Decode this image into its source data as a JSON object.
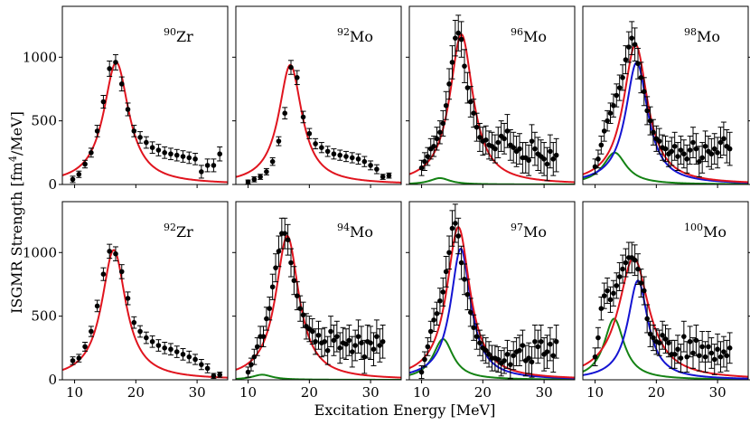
{
  "chart_data": {
    "type": "scatter",
    "layout": "2x4 grid of panels with shared axes",
    "xlabel": "Excitation Energy [MeV]",
    "ylabel": "ISGMR Strength [fm^4/MeV]",
    "ylabel_parts": {
      "main": "ISGMR Strength [fm",
      "sup": "4",
      "tail": "/MeV]"
    },
    "xlim": [
      8,
      35
    ],
    "ylim": [
      0,
      1400
    ],
    "xticks": [
      10,
      20,
      30
    ],
    "yticks": [
      0,
      500,
      1000
    ],
    "series_colors": {
      "data": "#000000",
      "total_fit": "#e0141e",
      "main_peak": "#1414d2",
      "low_peak": "#148214"
    },
    "panels": [
      {
        "name": "Zr-90",
        "mass": "90",
        "element": "Zr",
        "data": {
          "x": [
            9.7,
            10.7,
            11.7,
            12.7,
            13.7,
            14.7,
            15.7,
            16.7,
            17.7,
            18.7,
            19.7,
            20.7,
            21.7,
            22.7,
            23.7,
            24.7,
            25.7,
            26.7,
            27.7,
            28.7,
            29.7,
            30.7,
            31.7,
            32.7,
            33.7
          ],
          "y": [
            40,
            80,
            160,
            250,
            420,
            650,
            910,
            960,
            790,
            590,
            420,
            370,
            330,
            290,
            270,
            250,
            240,
            230,
            220,
            210,
            200,
            100,
            150,
            150,
            240
          ],
          "err": [
            25,
            25,
            30,
            35,
            45,
            50,
            60,
            60,
            55,
            50,
            45,
            45,
            45,
            45,
            45,
            45,
            45,
            45,
            45,
            45,
            45,
            50,
            50,
            50,
            55
          ]
        },
        "fit_total": {
          "centroid": 16.8,
          "width": 5.0,
          "peak": 960
        }
      },
      {
        "name": "Mo-92",
        "mass": "92",
        "element": "Mo",
        "data": {
          "x": [
            10.0,
            11.0,
            12.0,
            13.0,
            14.0,
            15.0,
            16.0,
            17.0,
            18.0,
            19.0,
            20.0,
            21.0,
            22.0,
            23.0,
            24.0,
            25.0,
            26.0,
            27.0,
            28.0,
            29.0,
            30.0,
            31.0,
            32.0,
            33.0
          ],
          "y": [
            20,
            40,
            60,
            100,
            180,
            340,
            560,
            920,
            840,
            530,
            400,
            320,
            290,
            260,
            240,
            230,
            220,
            210,
            200,
            180,
            150,
            120,
            60,
            70
          ],
          "err": [
            15,
            20,
            20,
            25,
            30,
            35,
            45,
            55,
            55,
            45,
            40,
            40,
            40,
            40,
            40,
            40,
            40,
            40,
            40,
            40,
            35,
            35,
            20,
            20
          ]
        },
        "fit_total": {
          "centroid": 16.9,
          "width": 4.6,
          "peak": 940
        }
      },
      {
        "name": "Mo-96",
        "mass": "96",
        "element": "Mo",
        "data": {
          "x": [
            10.0,
            10.5,
            11.0,
            11.5,
            12.0,
            12.5,
            13.0,
            13.5,
            14.0,
            14.5,
            15.0,
            15.5,
            16.0,
            16.5,
            17.0,
            17.5,
            18.0,
            18.5,
            19.0,
            19.5,
            20.0,
            20.5,
            21.0,
            21.5,
            22.0,
            22.5,
            23.0,
            23.5,
            24.0,
            24.5,
            25.0,
            25.5,
            26.0,
            26.5,
            27.0,
            27.5,
            28.0,
            28.5,
            29.0,
            29.5,
            30.0,
            30.5,
            31.0,
            31.5,
            32.0
          ],
          "y": [
            130,
            180,
            220,
            280,
            300,
            360,
            410,
            480,
            620,
            790,
            960,
            1150,
            1190,
            1140,
            930,
            760,
            650,
            560,
            450,
            370,
            340,
            350,
            310,
            300,
            280,
            330,
            380,
            360,
            420,
            310,
            290,
            260,
            280,
            210,
            210,
            190,
            340,
            280,
            240,
            220,
            200,
            160,
            260,
            200,
            230
          ],
          "err": [
            60,
            70,
            70,
            80,
            80,
            90,
            90,
            100,
            110,
            120,
            130,
            140,
            140,
            140,
            130,
            120,
            120,
            110,
            110,
            110,
            110,
            110,
            110,
            110,
            110,
            120,
            120,
            120,
            130,
            120,
            120,
            120,
            120,
            120,
            120,
            120,
            130,
            130,
            130,
            130,
            130,
            130,
            130,
            130,
            130
          ]
        },
        "fit_total": {
          "centroid": 16.5,
          "width": 4.6,
          "peak": 1180
        },
        "fit_low": {
          "centroid": 13.0,
          "width": 4.0,
          "peak": 50
        }
      },
      {
        "name": "Mo-98",
        "mass": "98",
        "element": "Mo",
        "data": {
          "x": [
            10.0,
            10.5,
            11.0,
            11.5,
            12.0,
            12.5,
            13.0,
            13.5,
            14.0,
            14.5,
            15.0,
            15.5,
            16.0,
            16.5,
            17.0,
            17.5,
            18.0,
            18.5,
            19.0,
            19.5,
            20.0,
            20.5,
            21.0,
            21.5,
            22.0,
            22.5,
            23.0,
            23.5,
            24.0,
            24.5,
            25.0,
            25.5,
            26.0,
            26.5,
            27.0,
            27.5,
            28.0,
            28.5,
            29.0,
            29.5,
            30.0,
            30.5,
            31.0,
            31.5,
            32.0
          ],
          "y": [
            140,
            200,
            310,
            420,
            500,
            560,
            620,
            700,
            760,
            840,
            980,
            1080,
            1150,
            1100,
            950,
            840,
            730,
            580,
            500,
            410,
            360,
            340,
            290,
            280,
            240,
            260,
            300,
            220,
            270,
            240,
            200,
            270,
            330,
            280,
            180,
            210,
            300,
            260,
            240,
            280,
            250,
            330,
            360,
            300,
            280
          ],
          "err": [
            60,
            70,
            70,
            80,
            80,
            80,
            90,
            90,
            100,
            100,
            110,
            120,
            130,
            130,
            120,
            120,
            110,
            110,
            110,
            100,
            100,
            100,
            100,
            100,
            100,
            110,
            110,
            110,
            110,
            110,
            110,
            110,
            120,
            120,
            120,
            120,
            120,
            120,
            120,
            120,
            120,
            120,
            130,
            130,
            130
          ]
        },
        "fit_total": {
          "centroid": 16.6,
          "width": 4.8,
          "peak": 1100
        },
        "fit_main": {
          "centroid": 16.8,
          "width": 4.4,
          "peak": 960
        },
        "fit_low": {
          "centroid": 13.2,
          "width": 4.6,
          "peak": 250
        }
      },
      {
        "name": "Zr-92",
        "mass": "92",
        "element": "Zr",
        "data": {
          "x": [
            9.7,
            10.7,
            11.7,
            12.7,
            13.7,
            14.7,
            15.7,
            16.7,
            17.7,
            18.7,
            19.7,
            20.7,
            21.7,
            22.7,
            23.7,
            24.7,
            25.7,
            26.7,
            27.7,
            28.7,
            29.7,
            30.7,
            31.7,
            32.7,
            33.7
          ],
          "y": [
            150,
            170,
            260,
            380,
            580,
            830,
            1010,
            990,
            850,
            640,
            450,
            380,
            330,
            300,
            270,
            250,
            240,
            220,
            200,
            180,
            160,
            120,
            90,
            30,
            40
          ],
          "err": [
            30,
            30,
            35,
            40,
            45,
            50,
            55,
            55,
            55,
            50,
            45,
            45,
            45,
            45,
            45,
            45,
            45,
            45,
            45,
            45,
            40,
            40,
            35,
            20,
            20
          ]
        },
        "fit_total": {
          "centroid": 16.4,
          "width": 4.8,
          "peak": 1020
        }
      },
      {
        "name": "Mo-94",
        "mass": "94",
        "element": "Mo",
        "data": {
          "x": [
            10.0,
            10.5,
            11.0,
            11.5,
            12.0,
            12.5,
            13.0,
            13.5,
            14.0,
            14.5,
            15.0,
            15.5,
            16.0,
            16.5,
            17.0,
            17.5,
            18.0,
            18.5,
            19.0,
            19.5,
            20.0,
            20.5,
            21.0,
            21.5,
            22.0,
            22.5,
            23.0,
            23.5,
            24.0,
            24.5,
            25.0,
            25.5,
            26.0,
            26.5,
            27.0,
            27.5,
            28.0,
            28.5,
            29.0,
            29.5,
            30.0,
            30.5,
            31.0,
            31.5,
            32.0
          ],
          "y": [
            60,
            120,
            180,
            260,
            340,
            340,
            480,
            560,
            730,
            880,
            1010,
            1150,
            1150,
            1100,
            920,
            780,
            660,
            560,
            510,
            420,
            400,
            380,
            300,
            350,
            290,
            300,
            230,
            380,
            310,
            340,
            250,
            290,
            280,
            310,
            220,
            270,
            340,
            290,
            180,
            300,
            290,
            240,
            340,
            270,
            300
          ],
          "err": [
            40,
            50,
            60,
            70,
            80,
            80,
            90,
            90,
            100,
            110,
            120,
            120,
            120,
            120,
            110,
            110,
            110,
            100,
            100,
            100,
            100,
            100,
            100,
            110,
            110,
            110,
            110,
            120,
            120,
            120,
            120,
            120,
            120,
            120,
            120,
            120,
            130,
            130,
            130,
            130,
            130,
            130,
            130,
            130,
            130
          ]
        },
        "fit_total": {
          "centroid": 16.4,
          "width": 4.6,
          "peak": 1130
        },
        "fit_low": {
          "centroid": 12.3,
          "width": 4.0,
          "peak": 40
        }
      },
      {
        "name": "Mo-97",
        "mass": "97",
        "element": "Mo",
        "data": {
          "x": [
            10.0,
            10.5,
            11.0,
            11.5,
            12.0,
            12.5,
            13.0,
            13.5,
            14.0,
            14.5,
            15.0,
            15.5,
            16.0,
            16.5,
            17.0,
            17.5,
            18.0,
            18.5,
            19.0,
            19.5,
            20.0,
            20.5,
            21.0,
            21.5,
            22.0,
            22.5,
            23.0,
            23.5,
            24.0,
            24.5,
            25.0,
            25.5,
            26.0,
            26.5,
            27.0,
            27.5,
            28.0,
            28.5,
            29.0,
            29.5,
            30.0,
            30.5,
            31.0,
            31.5,
            32.0
          ],
          "y": [
            60,
            160,
            260,
            380,
            470,
            520,
            620,
            690,
            850,
            1000,
            1190,
            1230,
            1130,
            920,
            790,
            670,
            530,
            410,
            340,
            290,
            250,
            230,
            200,
            170,
            170,
            160,
            130,
            150,
            200,
            120,
            190,
            220,
            230,
            270,
            150,
            170,
            140,
            300,
            260,
            300,
            200,
            220,
            280,
            190,
            300
          ],
          "err": [
            50,
            60,
            70,
            80,
            90,
            90,
            100,
            110,
            120,
            130,
            140,
            150,
            140,
            130,
            120,
            120,
            110,
            100,
            100,
            100,
            100,
            100,
            100,
            100,
            100,
            100,
            100,
            100,
            110,
            110,
            110,
            110,
            120,
            120,
            120,
            120,
            120,
            130,
            130,
            130,
            130,
            130,
            130,
            130,
            130
          ]
        },
        "fit_total": {
          "centroid": 16.0,
          "width": 4.6,
          "peak": 1200
        },
        "fit_main": {
          "centroid": 16.4,
          "width": 4.0,
          "peak": 1030
        },
        "fit_low": {
          "centroid": 13.5,
          "width": 4.0,
          "peak": 320
        }
      },
      {
        "name": "Mo-100",
        "mass": "100",
        "element": "Mo",
        "data": {
          "x": [
            10.0,
            10.5,
            11.0,
            11.5,
            12.0,
            12.5,
            13.0,
            13.5,
            14.0,
            14.5,
            15.0,
            15.5,
            16.0,
            16.5,
            17.0,
            17.5,
            18.0,
            18.5,
            19.0,
            19.5,
            20.0,
            20.5,
            21.0,
            21.5,
            22.0,
            22.5,
            23.0,
            23.5,
            24.0,
            24.5,
            25.0,
            25.5,
            26.0,
            26.5,
            27.0,
            27.5,
            28.0,
            28.5,
            29.0,
            29.5,
            30.0,
            30.5,
            31.0,
            31.5,
            32.0
          ],
          "y": [
            180,
            330,
            560,
            660,
            700,
            630,
            680,
            740,
            810,
            870,
            920,
            960,
            960,
            940,
            870,
            760,
            700,
            480,
            360,
            330,
            300,
            290,
            350,
            320,
            290,
            200,
            200,
            240,
            170,
            340,
            180,
            300,
            210,
            310,
            190,
            260,
            180,
            260,
            210,
            160,
            240,
            180,
            220,
            190,
            250
          ],
          "err": [
            70,
            80,
            90,
            100,
            100,
            100,
            100,
            100,
            110,
            110,
            110,
            120,
            120,
            120,
            120,
            110,
            110,
            110,
            100,
            100,
            100,
            100,
            110,
            110,
            110,
            110,
            110,
            110,
            110,
            120,
            120,
            120,
            120,
            120,
            120,
            120,
            120,
            120,
            120,
            120,
            120,
            120,
            120,
            120,
            120
          ]
        },
        "fit_total": {
          "centroid": 16.3,
          "width": 6.0,
          "peak": 960
        },
        "fit_main": {
          "centroid": 17.0,
          "width": 4.0,
          "peak": 780
        },
        "fit_low": {
          "centroid": 13.1,
          "width": 4.0,
          "peak": 480
        }
      }
    ]
  }
}
